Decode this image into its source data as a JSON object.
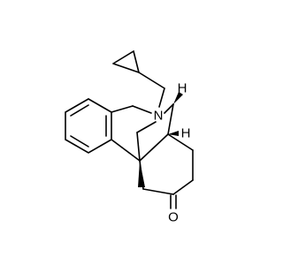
{
  "atoms": [
    {
      "label": "N"
    },
    {
      "label": "H"
    },
    {
      "label": "H"
    },
    {
      "label": "O"
    }
  ]
}
